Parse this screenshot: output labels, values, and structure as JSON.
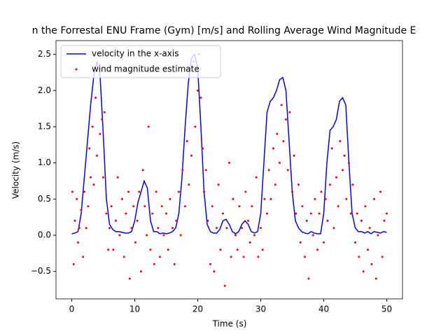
{
  "chart_data": {
    "type": "line",
    "title": "n the Forrestal ENU Frame (Gym) [m/s] and Rolling Average Wind Magnitude E",
    "xlabel": "Time (s)",
    "ylabel": "Velocity (m/s)",
    "xlim": [
      -2.5,
      52.5
    ],
    "ylim": [
      -0.88,
      2.69
    ],
    "xticks": [
      0,
      10,
      20,
      30,
      40,
      50
    ],
    "yticks": [
      {
        "value": -0.5,
        "label": "−0.5"
      },
      {
        "value": 0,
        "label": "0.0"
      },
      0.5,
      {
        "value": 1,
        "label": "1.0"
      },
      1.5,
      {
        "value": 2,
        "label": "2.0"
      },
      2.5
    ],
    "grid": false,
    "legend": "upper left",
    "series": [
      {
        "name": "velocity in the x-axis",
        "type": "line",
        "color": "#0000ff",
        "x": [
          0,
          0.5,
          1,
          1.5,
          2,
          2.5,
          3,
          3.5,
          4,
          4.5,
          5,
          5.5,
          6,
          6.5,
          7,
          7.5,
          8,
          8.5,
          9,
          9.5,
          10,
          10.5,
          11,
          11.5,
          12,
          12.5,
          13,
          13.5,
          14,
          14.5,
          15,
          15.5,
          16,
          16.5,
          17,
          17.5,
          18,
          18.5,
          19,
          19.5,
          20,
          20.5,
          21,
          21.5,
          22,
          22.5,
          23,
          23.5,
          24,
          24.5,
          25,
          25.5,
          26,
          26.5,
          27,
          27.5,
          28,
          28.5,
          29,
          29.5,
          30,
          30.5,
          31,
          31.5,
          32,
          32.5,
          33,
          33.5,
          34,
          34.5,
          35,
          35.5,
          36,
          36.5,
          37,
          37.5,
          38,
          38.5,
          39,
          39.5,
          40,
          40.5,
          41,
          41.5,
          42,
          42.5,
          43,
          43.5,
          44,
          44.5,
          45,
          45.5,
          46,
          46.5,
          47,
          47.5,
          48,
          48.5,
          49,
          49.5,
          50
        ],
        "values": [
          0.02,
          0.03,
          0.05,
          0.3,
          0.8,
          1.3,
          1.8,
          2.2,
          2.4,
          2.2,
          1.4,
          0.5,
          0.15,
          0.08,
          0.05,
          0.05,
          0.04,
          0.03,
          0.03,
          0.05,
          0.2,
          0.45,
          0.6,
          0.75,
          0.65,
          0.2,
          0.05,
          0.05,
          0.02,
          0.03,
          0.02,
          0.03,
          0.05,
          0.1,
          0.3,
          0.8,
          1.5,
          2.1,
          2.45,
          2.5,
          2.3,
          1.5,
          0.6,
          0.15,
          0.05,
          0.03,
          0.03,
          0.08,
          0.2,
          0.22,
          0.15,
          0.05,
          0.02,
          0.05,
          0.15,
          0.2,
          0.15,
          0.05,
          0.03,
          0.05,
          0.3,
          1.0,
          1.7,
          1.85,
          1.9,
          2.0,
          2.15,
          2.18,
          2.0,
          1.3,
          0.6,
          0.2,
          0.1,
          0.05,
          0.03,
          0.02,
          0.05,
          0.03,
          0.02,
          0.02,
          0.3,
          1.0,
          1.45,
          1.5,
          1.6,
          1.85,
          1.9,
          1.8,
          1.0,
          0.3,
          0.1,
          0.05,
          0.05,
          0.03,
          0.05,
          0.02,
          0.05,
          0.04,
          0.03,
          0.05,
          0.04
        ]
      },
      {
        "name": "wind magnitude estimate",
        "type": "scatter",
        "color": "#ff0000",
        "x": [
          0.1,
          0.3,
          0.5,
          0.8,
          1.0,
          1.2,
          1.5,
          1.8,
          2.0,
          2.3,
          2.6,
          2.8,
          3.0,
          3.3,
          3.5,
          3.8,
          4.0,
          4.2,
          4.5,
          4.8,
          5.0,
          5.2,
          5.5,
          5.8,
          6.0,
          6.3,
          6.6,
          7.0,
          7.3,
          7.6,
          8.0,
          8.3,
          8.6,
          9.0,
          9.2,
          9.5,
          9.8,
          10.1,
          10.4,
          10.7,
          11.0,
          11.3,
          11.6,
          11.9,
          12.2,
          12.5,
          12.8,
          13.1,
          13.4,
          13.7,
          14.0,
          14.3,
          14.6,
          15.0,
          15.3,
          15.6,
          16.0,
          16.3,
          16.6,
          17.0,
          17.3,
          17.6,
          18.0,
          18.3,
          18.6,
          19.0,
          19.3,
          19.6,
          20.0,
          20.2,
          20.5,
          20.8,
          21.0,
          21.3,
          21.6,
          22.0,
          22.3,
          22.6,
          23.0,
          23.3,
          23.6,
          24.0,
          24.3,
          24.6,
          25.0,
          25.3,
          25.6,
          26.0,
          26.3,
          26.6,
          27.0,
          27.3,
          27.6,
          28.0,
          28.3,
          28.6,
          29.0,
          29.3,
          29.6,
          30.0,
          30.3,
          30.6,
          31.0,
          31.3,
          31.6,
          32.0,
          32.3,
          32.6,
          33.0,
          33.3,
          33.6,
          34.0,
          34.3,
          34.6,
          35.0,
          35.3,
          35.6,
          36.0,
          36.3,
          36.6,
          37.0,
          37.3,
          37.6,
          38.0,
          38.3,
          38.6,
          39.0,
          39.3,
          39.6,
          40.0,
          40.3,
          40.6,
          41.0,
          41.3,
          41.6,
          42.0,
          42.3,
          42.6,
          43.0,
          43.3,
          43.6,
          44.0,
          44.3,
          44.6,
          45.0,
          45.3,
          45.6,
          46.0,
          46.3,
          46.6,
          47.0,
          47.3,
          47.6,
          48.0,
          48.3,
          48.6,
          49.0,
          49.3,
          49.6,
          50.0
        ],
        "values": [
          0.6,
          -0.4,
          0.2,
          0.5,
          -0.1,
          0.1,
          0.35,
          -0.3,
          0.6,
          0.1,
          0.4,
          1.2,
          0.8,
          1.5,
          0.7,
          1.9,
          1.1,
          2.3,
          1.4,
          1.6,
          0.8,
          1.7,
          0.3,
          -0.2,
          0.1,
          0.4,
          -0.2,
          0.2,
          0.8,
          0.0,
          0.5,
          -0.3,
          0.3,
          0.6,
          -0.6,
          0.1,
          0.4,
          -0.1,
          0.2,
          0.6,
          -0.5,
          0.9,
          0.4,
          0.0,
          1.5,
          -0.2,
          0.3,
          -0.4,
          0.6,
          0.1,
          -0.3,
          0.4,
          0.0,
          0.3,
          -0.2,
          0.5,
          0.1,
          -0.4,
          0.2,
          0.6,
          0.0,
          0.9,
          0.4,
          1.3,
          0.7,
          1.1,
          2.4,
          1.5,
          2.0,
          2.5,
          1.9,
          1.2,
          0.6,
          0.9,
          0.2,
          -0.4,
          0.4,
          -0.5,
          0.1,
          0.7,
          -0.2,
          0.3,
          -0.7,
          0.1,
          1.0,
          -0.3,
          0.5,
          0.0,
          -0.2,
          0.4,
          0.1,
          -0.3,
          0.6,
          0.2,
          -0.1,
          0.4,
          0.0,
          0.8,
          -0.3,
          0.1,
          -0.2,
          0.5,
          0.3,
          0.9,
          0.5,
          1.2,
          0.7,
          1.4,
          1.0,
          1.8,
          1.3,
          1.6,
          0.9,
          1.7,
          0.6,
          1.1,
          0.3,
          0.7,
          -0.1,
          0.4,
          -0.3,
          0.2,
          -0.6,
          0.3,
          0.0,
          0.5,
          -0.2,
          0.3,
          0.6,
          -0.1,
          0.5,
          0.2,
          0.7,
          1.2,
          0.1,
          0.8,
          0.4,
          1.3,
          0.9,
          1.1,
          0.5,
          1.0,
          0.3,
          0.7,
          -0.1,
          0.3,
          -0.3,
          0.2,
          -0.5,
          0.4,
          -0.2,
          0.1,
          -0.4,
          0.5,
          -0.6,
          0.0,
          0.6,
          -0.3,
          0.2,
          0.3
        ]
      }
    ]
  }
}
